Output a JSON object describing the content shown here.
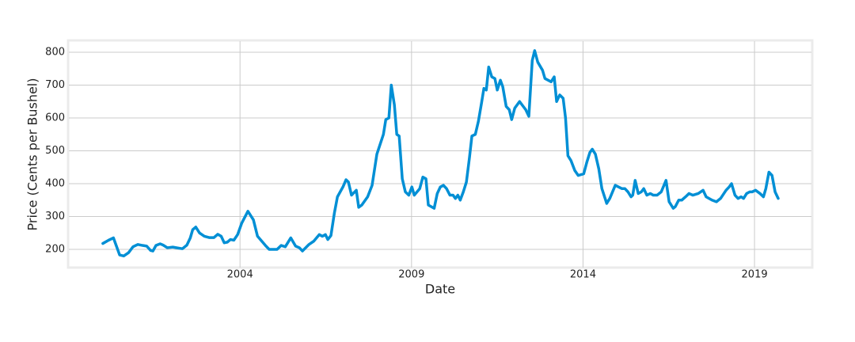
{
  "chart_data": {
    "type": "line",
    "xlabel": "Date",
    "ylabel": "Price (Cents per Bushel)",
    "color": "#008fd5",
    "grid": true,
    "xlim": [
      1999.01,
      2020.66
    ],
    "ylim": [
      144.6,
      833.7
    ],
    "xticks": [
      2004,
      2009,
      2014,
      2019
    ],
    "yticks": [
      200,
      300,
      400,
      500,
      600,
      700,
      800
    ],
    "x": [
      2000.0,
      2000.17,
      2000.31,
      2000.49,
      2000.61,
      2000.75,
      2000.88,
      2001.02,
      2001.16,
      2001.28,
      2001.39,
      2001.46,
      2001.55,
      2001.67,
      2001.76,
      2001.88,
      2002.04,
      2002.2,
      2002.32,
      2002.45,
      2002.55,
      2002.62,
      2002.71,
      2002.82,
      2002.96,
      2003.1,
      2003.24,
      2003.35,
      2003.45,
      2003.54,
      2003.63,
      2003.72,
      2003.82,
      2003.93,
      2004.05,
      2004.23,
      2004.39,
      2004.51,
      2004.74,
      2004.85,
      2005.08,
      2005.2,
      2005.32,
      2005.48,
      2005.62,
      2005.73,
      2005.82,
      2006.01,
      2006.15,
      2006.31,
      2006.4,
      2006.49,
      2006.56,
      2006.65,
      2006.75,
      2006.84,
      2007.0,
      2007.09,
      2007.16,
      2007.25,
      2007.39,
      2007.46,
      2007.55,
      2007.72,
      2007.85,
      2007.99,
      2008.18,
      2008.25,
      2008.34,
      2008.41,
      2008.5,
      2008.57,
      2008.64,
      2008.73,
      2008.82,
      2008.92,
      2009.01,
      2009.08,
      2009.24,
      2009.33,
      2009.42,
      2009.49,
      2009.66,
      2009.75,
      2009.84,
      2009.93,
      2010.02,
      2010.12,
      2010.21,
      2010.28,
      2010.35,
      2010.42,
      2010.51,
      2010.6,
      2010.69,
      2010.76,
      2010.86,
      2010.95,
      2011.04,
      2011.11,
      2011.18,
      2011.25,
      2011.34,
      2011.43,
      2011.5,
      2011.59,
      2011.66,
      2011.76,
      2011.85,
      2011.92,
      2012.01,
      2012.15,
      2012.33,
      2012.42,
      2012.52,
      2012.59,
      2012.68,
      2012.82,
      2012.89,
      2013.07,
      2013.16,
      2013.23,
      2013.32,
      2013.42,
      2013.49,
      2013.56,
      2013.65,
      2013.76,
      2013.86,
      2014.02,
      2014.11,
      2014.2,
      2014.27,
      2014.36,
      2014.46,
      2014.55,
      2014.69,
      2014.78,
      2014.94,
      2015.13,
      2015.22,
      2015.31,
      2015.4,
      2015.45,
      2015.52,
      2015.61,
      2015.7,
      2015.77,
      2015.86,
      2015.96,
      2016.05,
      2016.16,
      2016.28,
      2016.42,
      2016.51,
      2016.63,
      2016.69,
      2016.79,
      2016.88,
      2016.99,
      2017.09,
      2017.2,
      2017.36,
      2017.5,
      2017.59,
      2017.76,
      2017.89,
      2018.01,
      2018.17,
      2018.26,
      2018.33,
      2018.43,
      2018.52,
      2018.61,
      2018.68,
      2018.77,
      2018.86,
      2018.93,
      2019.03,
      2019.16,
      2019.26,
      2019.33,
      2019.42,
      2019.51,
      2019.6,
      2019.69
    ],
    "values": [
      218,
      228,
      235,
      183,
      180,
      190,
      208,
      215,
      212,
      210,
      197,
      195,
      212,
      217,
      213,
      205,
      207,
      204,
      202,
      213,
      235,
      260,
      268,
      250,
      240,
      236,
      236,
      246,
      240,
      220,
      222,
      230,
      228,
      245,
      280,
      316,
      290,
      240,
      212,
      200,
      200,
      212,
      208,
      235,
      210,
      205,
      195,
      215,
      225,
      245,
      240,
      245,
      230,
      242,
      310,
      360,
      390,
      412,
      405,
      365,
      380,
      328,
      335,
      360,
      395,
      490,
      550,
      595,
      600,
      700,
      640,
      550,
      545,
      415,
      375,
      365,
      390,
      365,
      385,
      420,
      415,
      335,
      325,
      370,
      390,
      395,
      385,
      365,
      365,
      355,
      365,
      350,
      375,
      405,
      480,
      545,
      550,
      590,
      645,
      690,
      685,
      755,
      725,
      720,
      685,
      715,
      695,
      635,
      625,
      595,
      630,
      650,
      625,
      605,
      775,
      805,
      770,
      745,
      720,
      710,
      725,
      650,
      670,
      660,
      600,
      485,
      470,
      440,
      425,
      430,
      465,
      495,
      505,
      490,
      445,
      385,
      340,
      355,
      395,
      385,
      385,
      375,
      360,
      365,
      410,
      370,
      375,
      385,
      365,
      370,
      365,
      365,
      375,
      410,
      345,
      325,
      330,
      350,
      350,
      360,
      370,
      365,
      370,
      380,
      360,
      350,
      345,
      355,
      380,
      390,
      400,
      365,
      355,
      360,
      355,
      370,
      375,
      375,
      380,
      370,
      360,
      385,
      435,
      425,
      375,
      355
    ]
  }
}
